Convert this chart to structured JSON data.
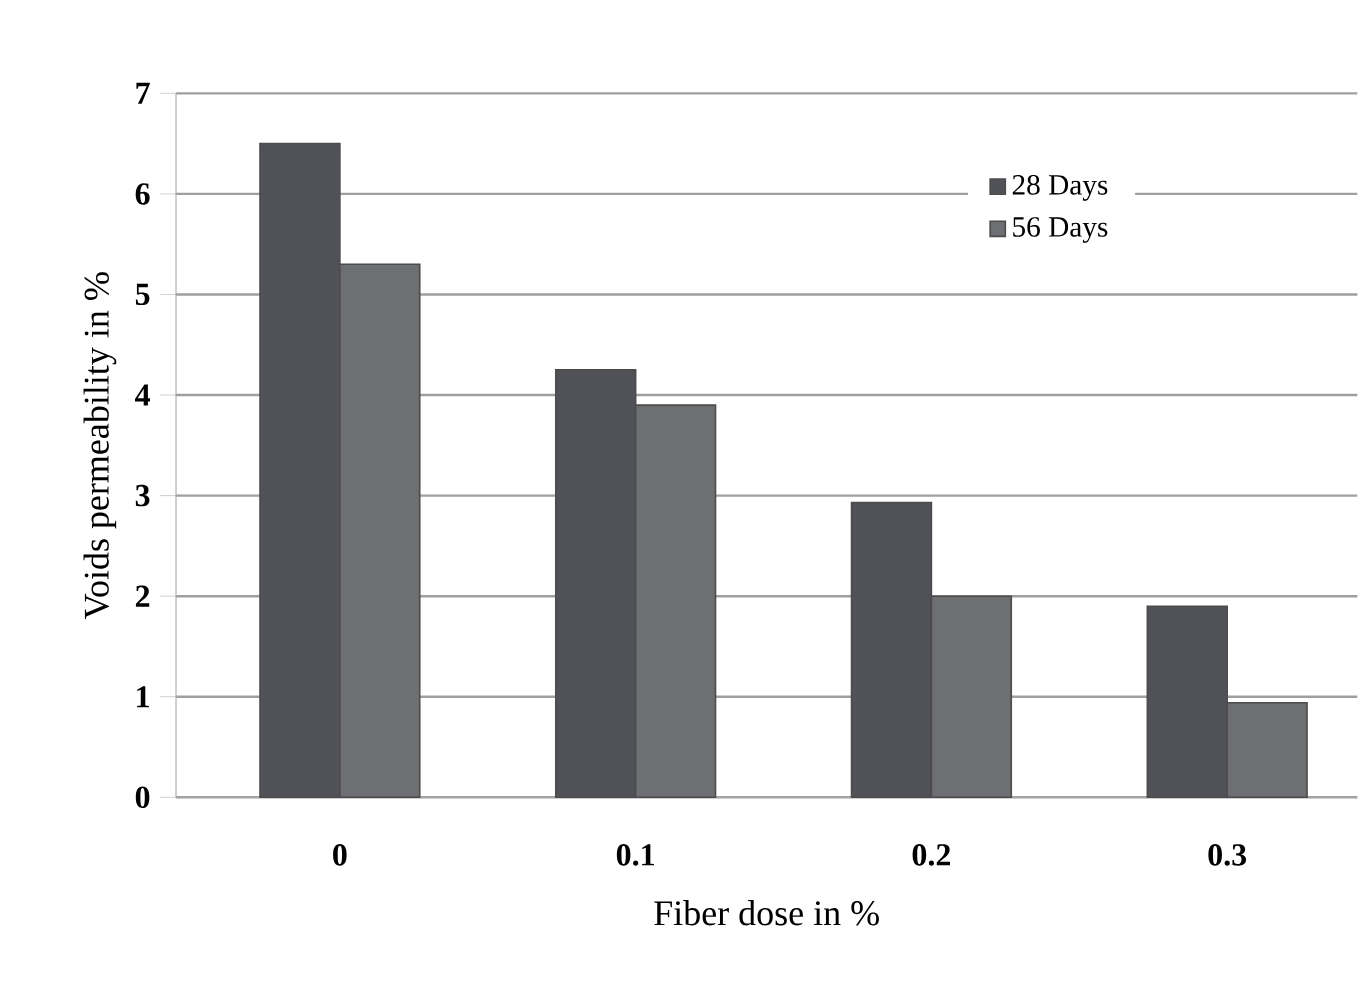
{
  "chart_data": {
    "type": "bar",
    "xlabel": "Fiber dose in %",
    "ylabel": "Voids permeability in %",
    "categories": [
      "0",
      "0.1",
      "0.2",
      "0.3"
    ],
    "series": [
      {
        "name": "28 Days",
        "color": "#505257",
        "values": [
          6.5,
          4.25,
          2.93,
          1.9
        ]
      },
      {
        "name": "56 Days",
        "color": "#6e6f72",
        "values": [
          5.3,
          3.9,
          2.0,
          0.94
        ]
      }
    ],
    "ylim": [
      0,
      7
    ],
    "yticks": [
      0,
      1,
      2,
      3,
      4,
      5,
      6,
      7
    ],
    "grid": "y",
    "legend": "top right"
  }
}
